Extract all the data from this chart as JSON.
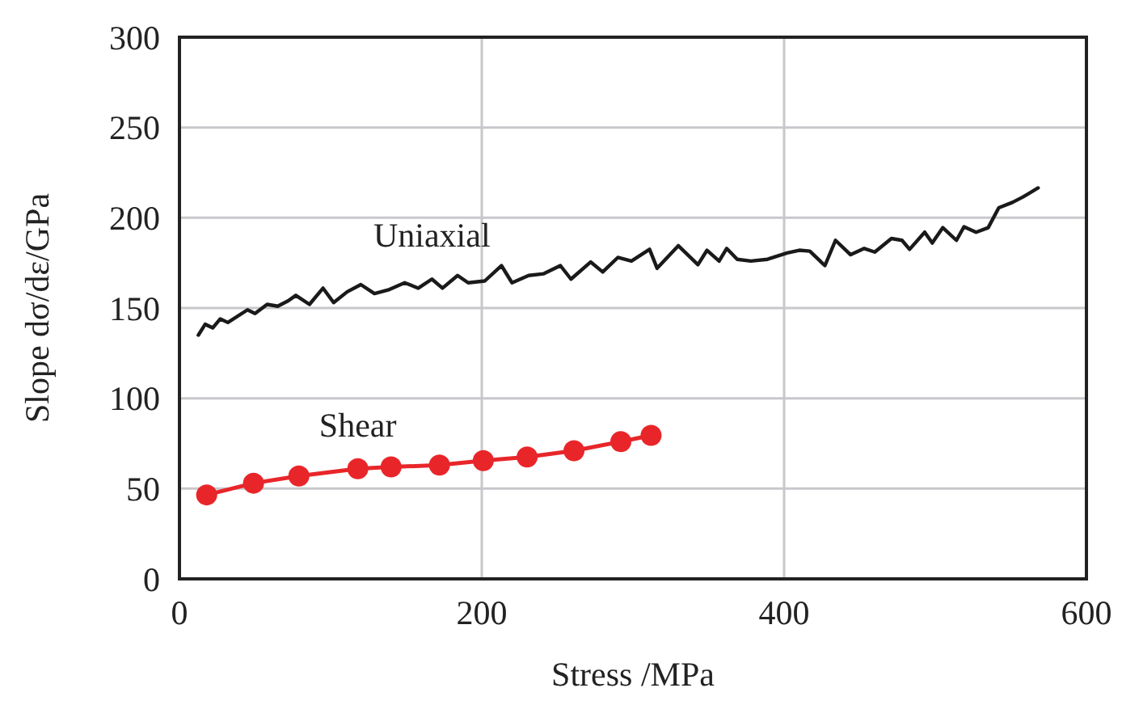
{
  "chart_data": {
    "type": "line",
    "xlabel": "Stress /MPa",
    "ylabel": "Slope dσ/dε/GPa",
    "xlim": [
      0,
      600
    ],
    "ylim": [
      0,
      300
    ],
    "xticks": [
      0,
      200,
      400,
      600
    ],
    "yticks": [
      0,
      50,
      100,
      150,
      200,
      250,
      300
    ],
    "grid": true,
    "line_style": "solid",
    "series": [
      {
        "name": "Uniaxial",
        "color": "#1a1a1a",
        "marker": "none",
        "x": [
          12.5,
          17,
          22,
          27,
          32,
          45,
          50,
          58,
          65,
          72,
          77,
          86,
          95,
          102,
          111,
          120,
          129,
          138,
          149,
          158,
          167,
          174,
          184,
          191,
          202,
          213,
          220,
          231,
          241,
          252,
          259,
          272,
          280,
          290,
          299,
          311,
          316,
          330,
          343,
          349,
          357,
          362,
          369,
          378,
          389,
          402,
          410,
          417,
          427,
          434,
          444,
          453,
          460,
          471,
          478,
          483,
          493,
          498,
          505,
          514,
          519,
          527,
          535,
          542,
          551,
          558,
          568
        ],
        "values": [
          135,
          141,
          139,
          144,
          142,
          149,
          147,
          152,
          151,
          154,
          157,
          152,
          161,
          153,
          159,
          163,
          158,
          160,
          164,
          161,
          166,
          161,
          168,
          164,
          165,
          173.5,
          164,
          168,
          169,
          173.5,
          166,
          175.5,
          170,
          178,
          176,
          182.5,
          172,
          184.5,
          174,
          182,
          176,
          183,
          177,
          176,
          177,
          180.5,
          182,
          181.5,
          173.5,
          187.5,
          179.5,
          183,
          181,
          188.5,
          187.5,
          182.5,
          192,
          186,
          194.5,
          187.5,
          195,
          192,
          194.5,
          205.5,
          208.5,
          211.5,
          216.5
        ]
      },
      {
        "name": "Shear",
        "color": "#e8262a",
        "marker": "circle",
        "x": [
          18,
          49,
          79,
          118,
          140,
          172,
          201,
          230,
          261,
          292,
          312
        ],
        "values": [
          46.5,
          53,
          57,
          61,
          62,
          63,
          65.5,
          67.5,
          71,
          76,
          79.5
        ]
      }
    ]
  }
}
